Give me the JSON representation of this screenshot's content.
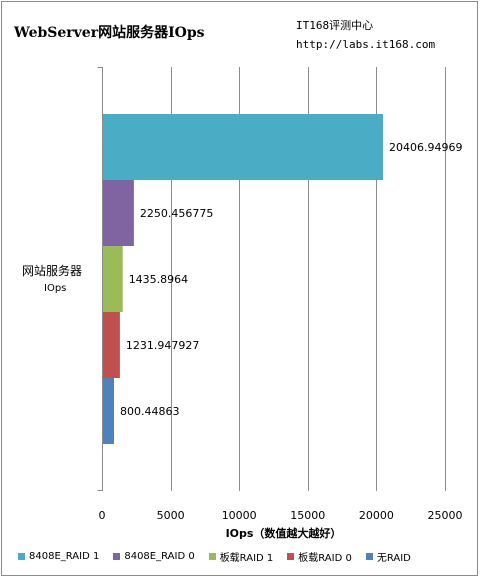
{
  "header": {
    "title": "WebServer网站服务器IOps",
    "source_line1": "IT168评测中心",
    "source_line2": "http://labs.it168.com"
  },
  "chart_data": {
    "type": "bar",
    "orientation": "horizontal",
    "categories": [
      "网站服务器 IOps"
    ],
    "category_label": {
      "line1": "网站服务器",
      "line2": "IOps"
    },
    "series": [
      {
        "name": "8408E_RAID 1",
        "value": 20406.94969,
        "label": "20406.94969",
        "color": "#4bacc6"
      },
      {
        "name": "8408E_RAID 0",
        "value": 2250.456775,
        "label": "2250.456775",
        "color": "#8064a2"
      },
      {
        "name": "板载RAID 1",
        "value": 1435.8964,
        "label": "1435.8964",
        "color": "#9bbb59"
      },
      {
        "name": "板载RAID 0",
        "value": 1231.947927,
        "label": "1231.947927",
        "color": "#c0504d"
      },
      {
        "name": "无RAID",
        "value": 800.44863,
        "label": "800.44863",
        "color": "#4f81bd"
      }
    ],
    "xlabel": "IOps（数值越大越好）",
    "xlim": [
      0,
      25000
    ],
    "xticks": [
      0,
      5000,
      10000,
      15000,
      20000,
      25000
    ],
    "grid": true,
    "legend_position": "bottom"
  }
}
